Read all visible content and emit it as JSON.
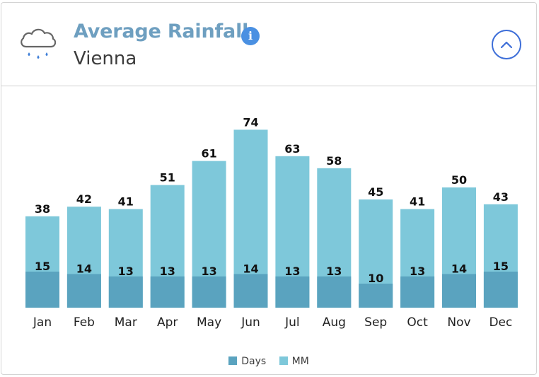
{
  "header": {
    "title": "Average Rainfall",
    "subtitle": "Vienna",
    "icon": "rain-cloud-icon",
    "info_icon": "info-icon",
    "collapse_icon": "chevron-up-icon"
  },
  "colors": {
    "days": "#5aa3bf",
    "mm": "#7ec8da",
    "title": "#6e9fc0",
    "accent": "#3d6ed8"
  },
  "chart_data": {
    "type": "bar",
    "title": "Average Rainfall",
    "categories": [
      "Jan",
      "Feb",
      "Mar",
      "Apr",
      "May",
      "Jun",
      "Jul",
      "Aug",
      "Sep",
      "Oct",
      "Nov",
      "Dec"
    ],
    "series": [
      {
        "name": "Days",
        "values": [
          15,
          14,
          13,
          13,
          13,
          14,
          13,
          13,
          10,
          13,
          14,
          15
        ]
      },
      {
        "name": "MM",
        "values": [
          38,
          42,
          41,
          51,
          61,
          74,
          63,
          58,
          45,
          41,
          50,
          43
        ]
      }
    ],
    "overlapping": true,
    "ylim": [
      0,
      80
    ],
    "grid": false,
    "legend": "bottom-center"
  },
  "legend": {
    "items": [
      "Days",
      "MM"
    ]
  }
}
